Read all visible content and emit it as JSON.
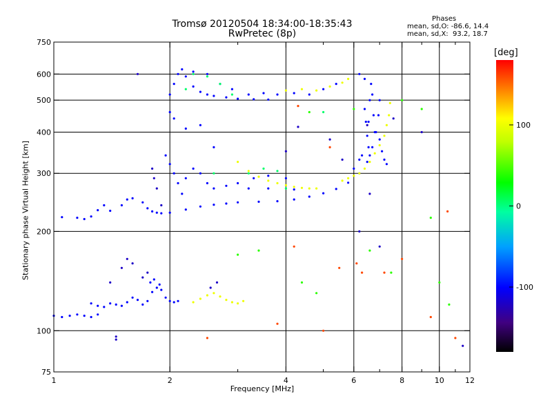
{
  "title_line1": "Tromsø 20120504 18:34:00-18:35:43",
  "title_line2": "RwPretec (8p)",
  "phases": {
    "heading": "Phases",
    "line_o": "mean, sd,O: -86.6, 14.4",
    "line_x": "mean, sd,X:  93.2, 18.7"
  },
  "colorbar": {
    "unit": "[deg]",
    "ticks": [
      {
        "label": "100",
        "value": 100
      },
      {
        "label": "0",
        "value": 0
      },
      {
        "label": "-100",
        "value": -100
      }
    ],
    "range": [
      -180,
      180
    ]
  },
  "chart_data": {
    "type": "scatter",
    "xlabel": "Frequency [MHz]",
    "ylabel": "Stationary phase Virtual Height [km]",
    "x_scale": "log",
    "y_scale": "log",
    "xlim": [
      1,
      12
    ],
    "ylim": [
      75,
      750
    ],
    "x_ticks": [
      {
        "label": "1",
        "value": 1
      },
      {
        "label": "2",
        "value": 2
      },
      {
        "label": "4",
        "value": 4
      },
      {
        "label": "6",
        "value": 6
      },
      {
        "label": "8",
        "value": 8
      },
      {
        "label": "10",
        "value": 10
      },
      {
        "label": "12",
        "value": 12
      }
    ],
    "x_minor": [
      3,
      5,
      7,
      9,
      11
    ],
    "x_grid": [
      2,
      4,
      6,
      8,
      10
    ],
    "y_ticks": [
      {
        "label": "750",
        "value": 750
      },
      {
        "label": "600",
        "value": 600
      },
      {
        "label": "500",
        "value": 500
      },
      {
        "label": "400",
        "value": 400
      },
      {
        "label": "300",
        "value": 300
      },
      {
        "label": "200",
        "value": 200
      },
      {
        "label": "100",
        "value": 100
      },
      {
        "label": "75",
        "value": 75
      }
    ],
    "y_grid": [
      600,
      500,
      400,
      300,
      200,
      100
    ],
    "grid": true,
    "series": [
      {
        "phase": -100,
        "points": [
          [
            1.0,
            111
          ],
          [
            1.05,
            110
          ],
          [
            1.1,
            111
          ],
          [
            1.15,
            112
          ],
          [
            1.2,
            111
          ],
          [
            1.25,
            110
          ],
          [
            1.3,
            112
          ],
          [
            1.35,
            118
          ],
          [
            1.4,
            121
          ],
          [
            1.45,
            120
          ],
          [
            1.5,
            119
          ],
          [
            1.55,
            122
          ],
          [
            1.6,
            126
          ],
          [
            1.65,
            124
          ],
          [
            1.7,
            120
          ],
          [
            1.75,
            123
          ],
          [
            1.8,
            131
          ],
          [
            1.85,
            135
          ],
          [
            1.9,
            133
          ],
          [
            1.95,
            126
          ],
          [
            2.0,
            123
          ],
          [
            2.05,
            122
          ],
          [
            2.1,
            123
          ],
          [
            1.25,
            121
          ],
          [
            1.3,
            119
          ],
          [
            1.78,
            140
          ],
          [
            1.82,
            143
          ],
          [
            1.88,
            138
          ]
        ]
      },
      {
        "phase": -100,
        "points": [
          [
            1.05,
            221
          ],
          [
            1.15,
            220
          ],
          [
            1.2,
            218
          ],
          [
            1.25,
            222
          ],
          [
            1.3,
            232
          ],
          [
            1.35,
            240
          ],
          [
            1.4,
            231
          ],
          [
            1.5,
            240
          ],
          [
            1.55,
            250
          ],
          [
            1.6,
            252
          ],
          [
            1.7,
            245
          ],
          [
            1.75,
            235
          ],
          [
            1.8,
            230
          ],
          [
            1.85,
            228
          ],
          [
            1.9,
            227
          ],
          [
            2.0,
            228
          ],
          [
            2.2,
            233
          ],
          [
            2.4,
            238
          ],
          [
            2.6,
            241
          ],
          [
            2.8,
            243
          ],
          [
            3.0,
            245
          ],
          [
            3.4,
            246
          ],
          [
            3.8,
            247
          ],
          [
            4.2,
            250
          ],
          [
            4.6,
            255
          ],
          [
            5.0,
            261
          ],
          [
            5.4,
            269
          ],
          [
            5.8,
            281
          ],
          [
            6.2,
            300
          ],
          [
            6.5,
            325
          ],
          [
            6.7,
            360
          ],
          [
            6.85,
            400
          ],
          [
            6.95,
            450
          ],
          [
            7.0,
            500
          ]
        ]
      },
      {
        "phase": -100,
        "points": [
          [
            2.0,
            520
          ],
          [
            2.05,
            560
          ],
          [
            2.1,
            600
          ],
          [
            2.15,
            620
          ],
          [
            2.2,
            590
          ],
          [
            2.3,
            550
          ],
          [
            2.4,
            530
          ],
          [
            2.5,
            520
          ],
          [
            2.6,
            515
          ],
          [
            2.8,
            510
          ],
          [
            3.0,
            505
          ],
          [
            3.3,
            503
          ],
          [
            3.6,
            502
          ],
          [
            2.3,
            610
          ],
          [
            2.5,
            600
          ],
          [
            2.7,
            560
          ],
          [
            2.9,
            540
          ],
          [
            3.2,
            520
          ],
          [
            3.5,
            525
          ],
          [
            3.8,
            520
          ],
          [
            4.2,
            525
          ],
          [
            4.6,
            520
          ],
          [
            5.0,
            540
          ],
          [
            5.4,
            560
          ],
          [
            6.2,
            600
          ],
          [
            6.4,
            580
          ]
        ]
      },
      {
        "phase": -100,
        "points": [
          [
            1.95,
            340
          ],
          [
            2.0,
            320
          ],
          [
            2.05,
            300
          ],
          [
            2.1,
            280
          ],
          [
            2.15,
            260
          ],
          [
            2.2,
            290
          ],
          [
            2.3,
            310
          ],
          [
            2.4,
            300
          ],
          [
            2.5,
            280
          ],
          [
            2.6,
            270
          ],
          [
            2.8,
            275
          ],
          [
            3.0,
            280
          ],
          [
            3.3,
            290
          ],
          [
            3.6,
            295
          ],
          [
            4.0,
            290
          ],
          [
            2.2,
            410
          ],
          [
            2.4,
            420
          ],
          [
            2.6,
            360
          ],
          [
            2.0,
            460
          ],
          [
            2.05,
            440
          ],
          [
            3.2,
            270
          ],
          [
            3.6,
            270
          ],
          [
            4.2,
            268
          ]
        ]
      },
      {
        "phase": -100,
        "points": [
          [
            6.4,
            470
          ],
          [
            6.45,
            430
          ],
          [
            6.5,
            390
          ],
          [
            6.55,
            360
          ],
          [
            6.6,
            340
          ],
          [
            6.55,
            430
          ],
          [
            6.6,
            500
          ],
          [
            6.65,
            560
          ],
          [
            6.7,
            520
          ],
          [
            6.75,
            450
          ],
          [
            6.8,
            400
          ],
          [
            7.0,
            380
          ],
          [
            7.1,
            350
          ],
          [
            7.2,
            330
          ],
          [
            7.3,
            320
          ],
          [
            6.3,
            340
          ],
          [
            6.2,
            330
          ],
          [
            6.0,
            310
          ]
        ]
      },
      {
        "phase": 100,
        "points": [
          [
            3.0,
            325
          ],
          [
            3.2,
            305
          ],
          [
            3.4,
            293
          ],
          [
            3.6,
            285
          ],
          [
            3.8,
            280
          ],
          [
            4.0,
            276
          ],
          [
            4.2,
            273
          ],
          [
            4.4,
            271
          ],
          [
            4.6,
            270
          ],
          [
            4.8,
            270
          ]
        ]
      },
      {
        "phase": 100,
        "points": [
          [
            5.6,
            285
          ],
          [
            5.8,
            290
          ],
          [
            6.0,
            295
          ],
          [
            6.2,
            300
          ],
          [
            6.4,
            310
          ],
          [
            6.6,
            325
          ],
          [
            6.8,
            345
          ],
          [
            7.0,
            365
          ],
          [
            7.2,
            390
          ],
          [
            7.3,
            420
          ],
          [
            7.4,
            450
          ],
          [
            7.45,
            490
          ]
        ]
      },
      {
        "phase": 100,
        "points": [
          [
            2.3,
            122
          ],
          [
            2.4,
            125
          ],
          [
            2.5,
            128
          ],
          [
            2.6,
            130
          ],
          [
            2.7,
            127
          ],
          [
            2.8,
            124
          ],
          [
            2.9,
            122
          ],
          [
            3.0,
            121
          ],
          [
            3.1,
            123
          ],
          [
            4.0,
            535
          ],
          [
            4.4,
            540
          ],
          [
            4.8,
            535
          ],
          [
            5.2,
            550
          ],
          [
            5.6,
            565
          ],
          [
            5.8,
            580
          ]
        ]
      },
      {
        "phase": 5,
        "points": [
          [
            2.3,
            600
          ],
          [
            2.5,
            590
          ],
          [
            2.7,
            560
          ],
          [
            2.9,
            520
          ],
          [
            3.2,
            300
          ],
          [
            3.5,
            310
          ],
          [
            3.8,
            305
          ],
          [
            2.2,
            540
          ],
          [
            2.6,
            300
          ],
          [
            4.0,
            270
          ],
          [
            5.0,
            460
          ]
        ]
      },
      {
        "phase": 160,
        "points": [
          [
            4.2,
            180
          ],
          [
            5.0,
            100
          ],
          [
            5.5,
            155
          ],
          [
            6.1,
            160
          ],
          [
            6.3,
            150
          ],
          [
            3.8,
            105
          ],
          [
            7.2,
            150
          ],
          [
            8.0,
            165
          ],
          [
            9.5,
            110
          ],
          [
            10.5,
            230
          ],
          [
            11.0,
            95
          ],
          [
            2.5,
            95
          ],
          [
            4.3,
            480
          ],
          [
            5.2,
            360
          ]
        ]
      },
      {
        "phase": 40,
        "points": [
          [
            3.0,
            170
          ],
          [
            3.4,
            175
          ],
          [
            4.4,
            140
          ],
          [
            4.8,
            130
          ],
          [
            6.6,
            175
          ],
          [
            7.5,
            150
          ],
          [
            8.0,
            500
          ],
          [
            9.0,
            470
          ],
          [
            9.5,
            220
          ],
          [
            10.0,
            140
          ],
          [
            10.6,
            120
          ],
          [
            4.6,
            460
          ],
          [
            6.0,
            470
          ]
        ]
      },
      {
        "phase": -120,
        "points": [
          [
            1.5,
            155
          ],
          [
            1.55,
            165
          ],
          [
            1.6,
            160
          ],
          [
            1.7,
            145
          ],
          [
            1.75,
            150
          ],
          [
            1.65,
            600
          ],
          [
            1.8,
            310
          ],
          [
            1.82,
            290
          ],
          [
            1.85,
            270
          ],
          [
            1.9,
            240
          ],
          [
            1.4,
            140
          ],
          [
            1.45,
            96
          ],
          [
            1.45,
            94
          ],
          [
            2.55,
            135
          ],
          [
            2.65,
            140
          ],
          [
            4.0,
            350
          ],
          [
            4.3,
            415
          ],
          [
            5.2,
            380
          ],
          [
            5.6,
            330
          ],
          [
            6.2,
            200
          ],
          [
            6.5,
            420
          ],
          [
            6.6,
            260
          ],
          [
            7.0,
            180
          ],
          [
            7.6,
            440
          ],
          [
            9.0,
            400
          ],
          [
            11.5,
            90
          ]
        ]
      }
    ]
  }
}
